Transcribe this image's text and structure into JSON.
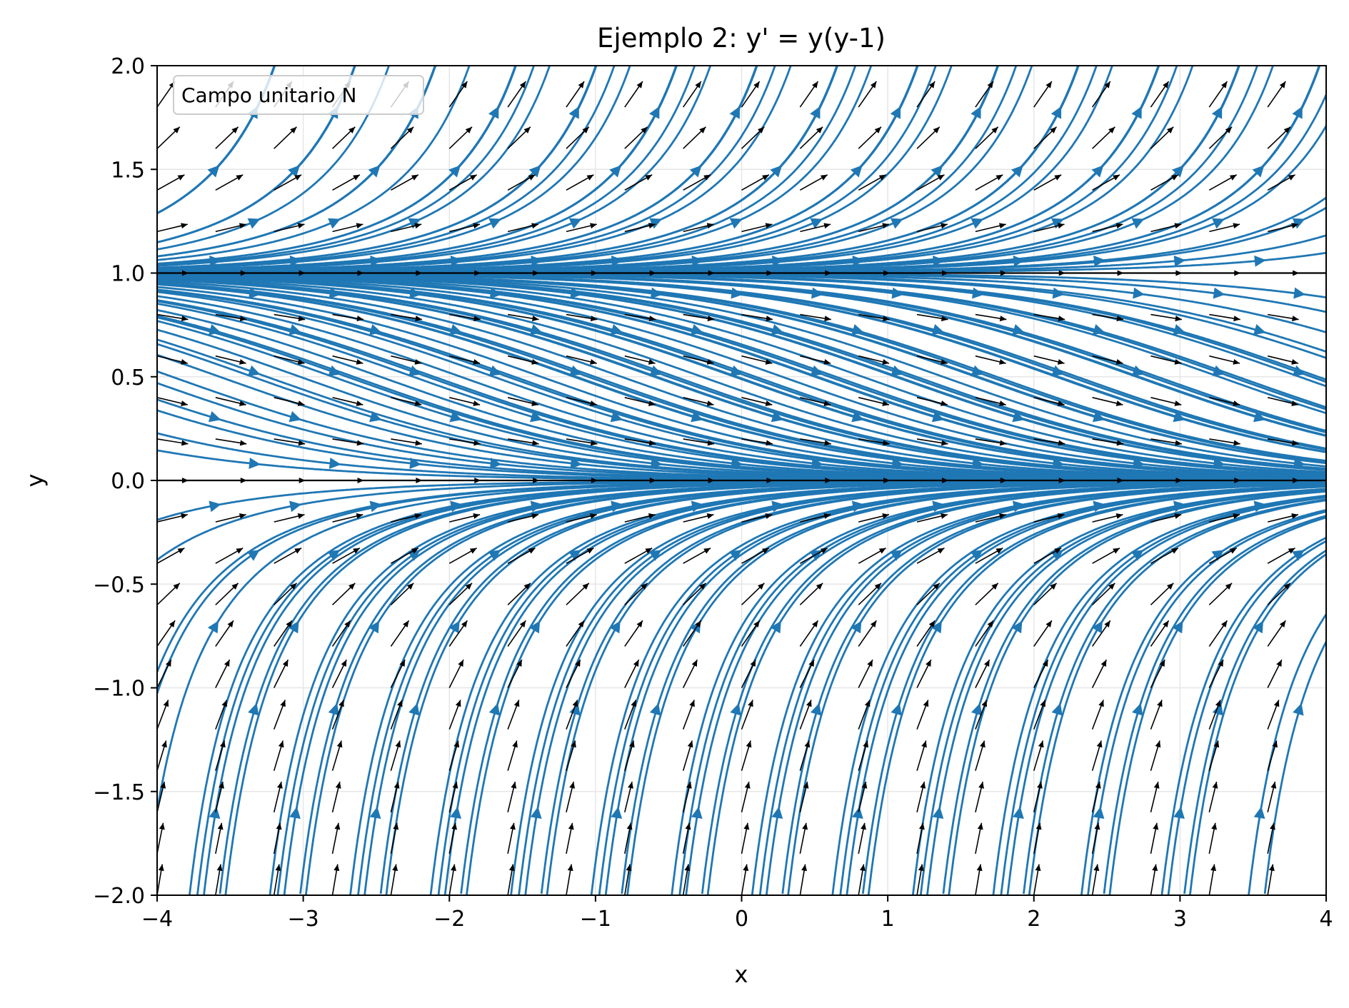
{
  "chart_data": {
    "type": "streamplot",
    "title": "Ejemplo 2:  y' = y(y-1)",
    "xlabel": "x",
    "ylabel": "y",
    "xlim": [
      -4,
      4
    ],
    "ylim": [
      -2,
      2
    ],
    "xticks": [
      -4,
      -3,
      -2,
      -1,
      0,
      1,
      2,
      3,
      4
    ],
    "xtick_labels": [
      "−4",
      "−3",
      "−2",
      "−1",
      "0",
      "1",
      "2",
      "3",
      "4"
    ],
    "yticks": [
      2.0,
      1.5,
      1.0,
      0.5,
      0.0,
      -0.5,
      -1.0,
      -1.5,
      -2.0
    ],
    "ytick_labels": [
      "2.0",
      "1.5",
      "1.0",
      "0.5",
      "0.0",
      "−0.5",
      "−1.0",
      "−1.5",
      "−2.0"
    ],
    "grid": true,
    "legend": {
      "label": "Campo unitario N",
      "placement": "top-left"
    },
    "equilibria": [
      0,
      1
    ],
    "quiver_grid": {
      "nx": 21,
      "ny": 21,
      "normalized": true
    },
    "colors": {
      "stream": "#1f77b4",
      "quiver": "#000000",
      "grid": "#e6e6e6"
    }
  }
}
